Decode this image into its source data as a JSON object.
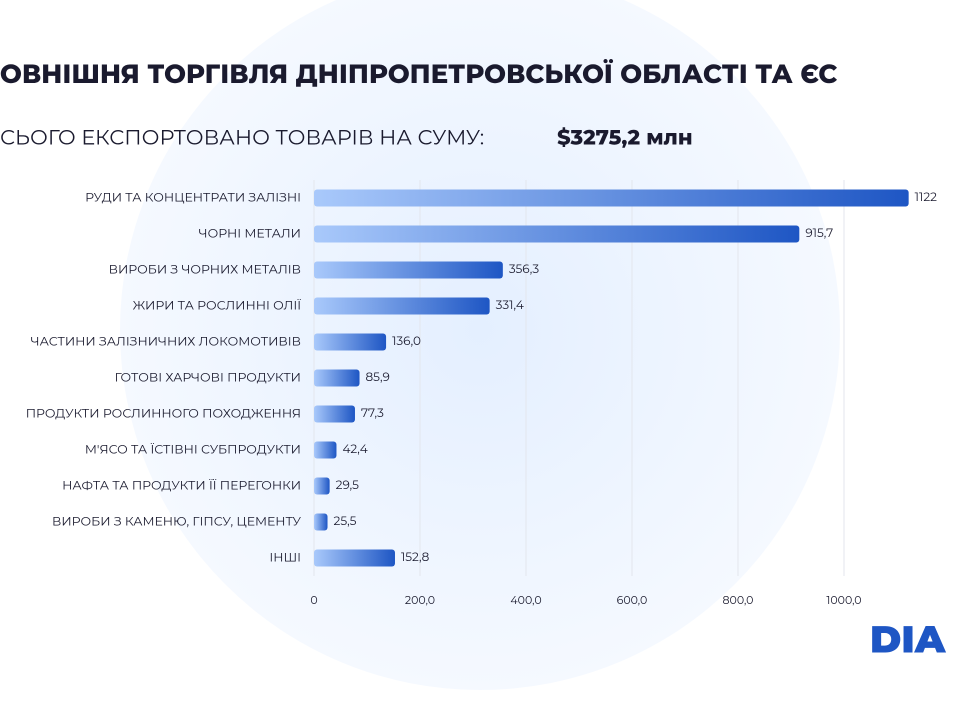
{
  "chart_data": {
    "type": "barh",
    "title": "ОВНІШНЯ ТОРГІВЛЯ ДНІПРОПЕТРОВСЬКОЇ ОБЛАСТІ ТА ЄС",
    "subtitle": "СЬОГО ЕКСПОРТОВАНО ТОВАРІВ НА СУМУ:",
    "subtitle_value": "$3275,2 млн",
    "categories": [
      "РУДИ ТА КОНЦЕНТРАТИ ЗАЛІЗНІ",
      "ЧОРНІ МЕТАЛИ",
      "ВИРОБИ З ЧОРНИХ МЕТАЛІВ",
      "ЖИРИ ТА РОСЛИННІ ОЛІЇ",
      "ЧАСТИНИ ЗАЛІЗНИЧНИХ ЛОКОМОТИВІВ",
      "ГОТОВІ ХАРЧОВІ ПРОДУКТИ",
      "ПРОДУКТИ РОСЛИННОГО ПОХОДЖЕННЯ",
      "М'ЯСО ТА ЇСТІВНІ СУБПРОДУКТИ",
      "НАФТА ТА ПРОДУКТИ ЇЇ ПЕРЕГОНКИ",
      "ВИРОБИ З КАМЕНЮ, ГІПСУ, ЦЕМЕНТУ",
      "ІНШІ"
    ],
    "values": [
      1122,
      915.7,
      356.3,
      331.4,
      136.0,
      85.9,
      77.3,
      42.4,
      29.5,
      25.5,
      152.8
    ],
    "value_labels": [
      "1122",
      "915,7",
      "356,3",
      "331,4",
      "136,0",
      "85,9",
      "77,3",
      "42,4",
      "29,5",
      "25,5",
      "152,8"
    ],
    "color": "#1e56c4",
    "xlim": [
      0,
      1200
    ],
    "xticks": [
      0,
      {
        "value": 200,
        "label": "200,0"
      },
      {
        "value": 400,
        "label": "400,0"
      },
      {
        "value": 600,
        "label": "600,0"
      },
      {
        "value": 800,
        "label": "800,0"
      },
      {
        "value": 1000,
        "label": "1000,0"
      }
    ],
    "grid": true,
    "logo": "DIA"
  }
}
